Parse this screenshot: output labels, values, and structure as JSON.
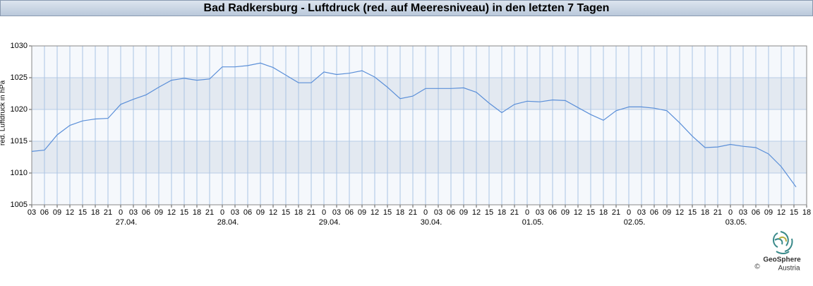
{
  "chart_data": {
    "type": "line",
    "title": "Bad Radkersburg - Luftdruck (red. auf Meeresniveau) in den letzten 7 Tagen",
    "ylabel": "red. Luftdruck in hPa",
    "color": "#5b8fd8",
    "grid": true,
    "x": [
      3,
      6,
      9,
      12,
      15,
      18,
      21,
      24,
      27,
      30,
      33,
      36,
      39,
      42,
      45,
      48,
      51,
      54,
      57,
      60,
      63,
      66,
      69,
      72,
      75,
      78,
      81,
      84,
      87,
      90,
      93,
      96,
      99,
      102,
      105,
      108,
      111,
      114,
      117,
      120,
      123,
      126,
      129,
      132,
      135,
      138,
      141,
      144,
      147,
      150,
      153,
      156,
      159,
      162,
      165,
      168,
      171,
      174,
      177,
      180,
      183.5
    ],
    "values": [
      1013.4,
      1013.6,
      1016.0,
      1017.5,
      1018.2,
      1018.5,
      1018.6,
      1020.8,
      1021.6,
      1022.3,
      1023.5,
      1024.6,
      1024.9,
      1024.6,
      1024.8,
      1026.7,
      1026.7,
      1026.9,
      1027.3,
      1026.6,
      1025.4,
      1024.2,
      1024.2,
      1025.9,
      1025.5,
      1025.7,
      1026.1,
      1025.1,
      1023.5,
      1021.7,
      1022.1,
      1023.3,
      1023.3,
      1023.3,
      1023.4,
      1022.7,
      1021.0,
      1019.5,
      1020.8,
      1021.3,
      1021.2,
      1021.5,
      1021.4,
      1020.3,
      1019.2,
      1018.3,
      1019.8,
      1020.4,
      1020.4,
      1020.2,
      1019.8,
      1017.9,
      1015.8,
      1014.0,
      1014.1,
      1014.5,
      1014.2,
      1014.0,
      1013.0,
      1011.0,
      1007.8
    ],
    "xlim": [
      3,
      186
    ],
    "ylim": [
      1005,
      1030
    ],
    "yticks": [
      1005,
      1010,
      1015,
      1020,
      1025,
      1030
    ],
    "xticks": [
      {
        "value": 3,
        "label": "03"
      },
      {
        "value": 6,
        "label": "06"
      },
      {
        "value": 9,
        "label": "09"
      },
      {
        "value": 12,
        "label": "12"
      },
      {
        "value": 15,
        "label": "15"
      },
      {
        "value": 18,
        "label": "18"
      },
      {
        "value": 21,
        "label": "21"
      },
      {
        "value": 24,
        "label": "0"
      },
      {
        "value": 27,
        "label": "03"
      },
      {
        "value": 30,
        "label": "06"
      },
      {
        "value": 33,
        "label": "09"
      },
      {
        "value": 36,
        "label": "12"
      },
      {
        "value": 39,
        "label": "15"
      },
      {
        "value": 42,
        "label": "18"
      },
      {
        "value": 45,
        "label": "21"
      },
      {
        "value": 48,
        "label": "0"
      },
      {
        "value": 51,
        "label": "03"
      },
      {
        "value": 54,
        "label": "06"
      },
      {
        "value": 57,
        "label": "09"
      },
      {
        "value": 60,
        "label": "12"
      },
      {
        "value": 63,
        "label": "15"
      },
      {
        "value": 66,
        "label": "18"
      },
      {
        "value": 69,
        "label": "21"
      },
      {
        "value": 72,
        "label": "0"
      },
      {
        "value": 75,
        "label": "03"
      },
      {
        "value": 78,
        "label": "06"
      },
      {
        "value": 81,
        "label": "09"
      },
      {
        "value": 84,
        "label": "12"
      },
      {
        "value": 87,
        "label": "15"
      },
      {
        "value": 90,
        "label": "18"
      },
      {
        "value": 93,
        "label": "21"
      },
      {
        "value": 96,
        "label": "0"
      },
      {
        "value": 99,
        "label": "03"
      },
      {
        "value": 102,
        "label": "06"
      },
      {
        "value": 105,
        "label": "09"
      },
      {
        "value": 108,
        "label": "12"
      },
      {
        "value": 111,
        "label": "15"
      },
      {
        "value": 114,
        "label": "18"
      },
      {
        "value": 117,
        "label": "21"
      },
      {
        "value": 120,
        "label": "0"
      },
      {
        "value": 123,
        "label": "03"
      },
      {
        "value": 126,
        "label": "06"
      },
      {
        "value": 129,
        "label": "09"
      },
      {
        "value": 132,
        "label": "12"
      },
      {
        "value": 135,
        "label": "15"
      },
      {
        "value": 138,
        "label": "18"
      },
      {
        "value": 141,
        "label": "21"
      },
      {
        "value": 144,
        "label": "0"
      },
      {
        "value": 147,
        "label": "03"
      },
      {
        "value": 150,
        "label": "06"
      },
      {
        "value": 153,
        "label": "09"
      },
      {
        "value": 156,
        "label": "12"
      },
      {
        "value": 159,
        "label": "15"
      },
      {
        "value": 162,
        "label": "18"
      },
      {
        "value": 165,
        "label": "21"
      },
      {
        "value": 168,
        "label": "0"
      },
      {
        "value": 171,
        "label": "03"
      },
      {
        "value": 174,
        "label": "06"
      },
      {
        "value": 177,
        "label": "09"
      },
      {
        "value": 180,
        "label": "12"
      },
      {
        "value": 183,
        "label": "15"
      },
      {
        "value": 186,
        "label": "18"
      }
    ],
    "date_ticks": [
      {
        "value": 24,
        "label": "27.04."
      },
      {
        "value": 48,
        "label": "28.04."
      },
      {
        "value": 72,
        "label": "29.04."
      },
      {
        "value": 96,
        "label": "30.04."
      },
      {
        "value": 120,
        "label": "01.05."
      },
      {
        "value": 144,
        "label": "02.05."
      },
      {
        "value": 168,
        "label": "03.05."
      }
    ]
  },
  "logo": {
    "name": "GeoSphere",
    "sub": "Austria",
    "copyright": "©"
  }
}
